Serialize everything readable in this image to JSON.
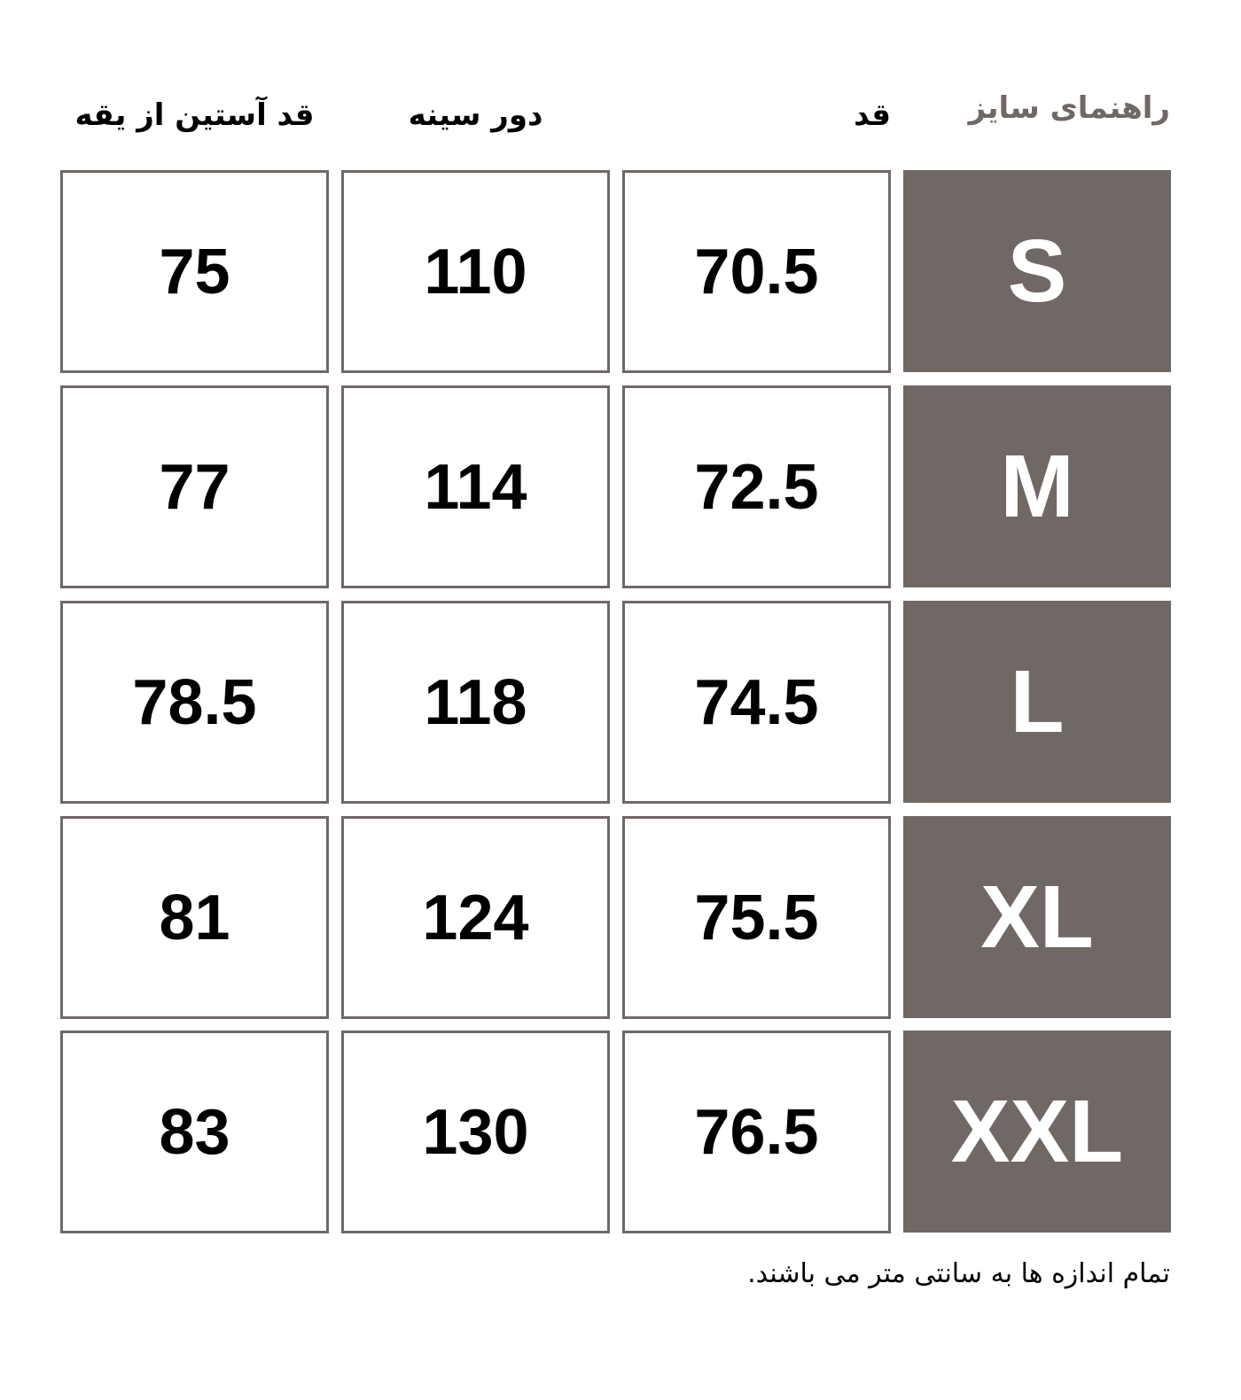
{
  "title": "راهنمای سایز",
  "headers": [
    "قد",
    "دور سینه",
    "قد آستین از یقه"
  ],
  "rows": [
    {
      "size": "S",
      "height": "70.5",
      "chest": "110",
      "sleeve": "75"
    },
    {
      "size": "M",
      "height": "72.5",
      "chest": "114",
      "sleeve": "77"
    },
    {
      "size": "L",
      "height": "74.5",
      "chest": "118",
      "sleeve": "78.5"
    },
    {
      "size": "XL",
      "height": "75.5",
      "chest": "124",
      "sleeve": "81"
    },
    {
      "size": "XXL",
      "height": "76.5",
      "chest": "130",
      "sleeve": "83"
    }
  ],
  "footnote": "تمام اندازه ها به سانتی متر می باشند.",
  "colors": {
    "accent": "#706865"
  }
}
